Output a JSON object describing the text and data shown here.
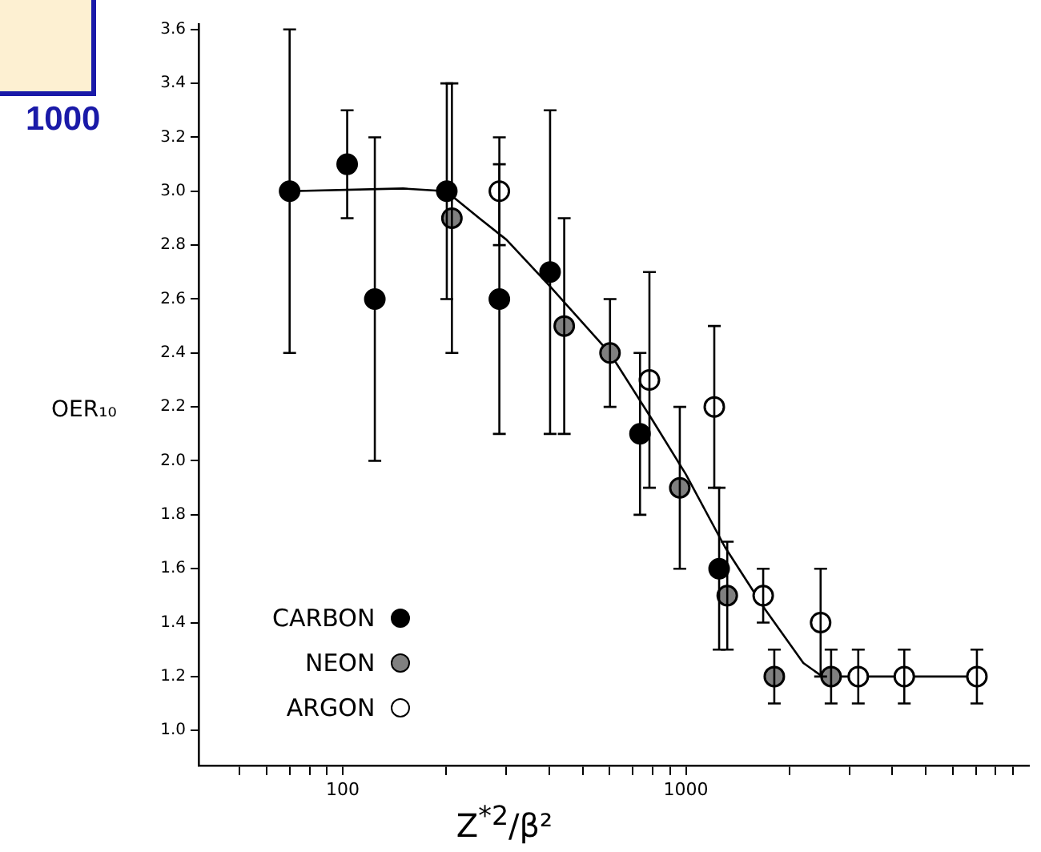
{
  "chart_data": {
    "type": "scatter",
    "xlabel": "Z$^{*2}$/β²",
    "ylabel": "OER₁₀",
    "log": "x",
    "grid": false,
    "legend": "bottom left",
    "marker": "circle",
    "xlim": [
      38,
      10000
    ],
    "ylim": [
      0.87,
      3.62
    ],
    "xticks": [
      {
        "value": 50,
        "label": null
      },
      {
        "value": 60,
        "label": null
      },
      {
        "value": 70,
        "label": null
      },
      {
        "value": 80,
        "label": null
      },
      {
        "value": 90,
        "label": null
      },
      100,
      {
        "value": 200,
        "label": null
      },
      {
        "value": 300,
        "label": null
      },
      {
        "value": 400,
        "label": null
      },
      {
        "value": 500,
        "label": null
      },
      {
        "value": 600,
        "label": null
      },
      {
        "value": 700,
        "label": null
      },
      {
        "value": 800,
        "label": null
      },
      {
        "value": 900,
        "label": null
      },
      1000,
      {
        "value": 2000,
        "label": null
      },
      {
        "value": 3000,
        "label": null
      },
      {
        "value": 4000,
        "label": null
      },
      {
        "value": 5000,
        "label": null
      },
      {
        "value": 6000,
        "label": null
      },
      {
        "value": 7000,
        "label": null
      },
      {
        "value": 8000,
        "label": null
      },
      {
        "value": 9000,
        "label": null
      }
    ],
    "yticks": [
      {
        "value": 1.0,
        "label": "1.0"
      },
      {
        "value": 1.2,
        "label": "1.2"
      },
      {
        "value": 1.4,
        "label": "1.4"
      },
      {
        "value": 1.6,
        "label": "1.6"
      },
      {
        "value": 1.8,
        "label": "1.8"
      },
      {
        "value": 2.0,
        "label": "2.0"
      },
      {
        "value": 2.2,
        "label": "2.2"
      },
      {
        "value": 2.4,
        "label": "2.4"
      },
      {
        "value": 2.6,
        "label": "2.6"
      },
      {
        "value": 2.8,
        "label": "2.8"
      },
      {
        "value": 3.0,
        "label": "3.0"
      },
      {
        "value": 3.2,
        "label": "3.2"
      },
      {
        "value": 3.4,
        "label": "3.4"
      },
      {
        "value": 3.6,
        "label": "3.6"
      }
    ],
    "annotations": [
      "1000"
    ],
    "series": [
      {
        "name": "CARBON",
        "color": "#000000",
        "x": [
          70,
          103,
          124,
          201,
          286,
          402,
          735,
          1250
        ],
        "values": [
          3.0,
          3.1,
          2.6,
          3.0,
          2.6,
          2.7,
          2.1,
          1.6
        ],
        "errors": [
          [
            2.4,
            3.6
          ],
          [
            2.9,
            3.3
          ],
          [
            2.0,
            3.2
          ],
          [
            2.6,
            3.4
          ],
          [
            2.1,
            3.1
          ],
          [
            2.1,
            3.3
          ],
          [
            1.8,
            2.4
          ],
          [
            1.3,
            1.9
          ]
        ]
      },
      {
        "name": "NEON",
        "color": "#808080",
        "x": [
          208,
          442,
          601,
          960,
          1320,
          1810,
          2650
        ],
        "values": [
          2.9,
          2.5,
          2.4,
          1.9,
          1.5,
          1.2,
          1.2
        ],
        "errors": [
          [
            2.4,
            3.4
          ],
          [
            2.1,
            2.9
          ],
          [
            2.2,
            2.6
          ],
          [
            1.6,
            2.2
          ],
          [
            1.3,
            1.7
          ],
          [
            1.1,
            1.3
          ],
          [
            1.1,
            1.3
          ]
        ]
      },
      {
        "name": "ARGON",
        "color": "#ffffff",
        "x": [
          286,
          783,
          1210,
          1680,
          2470,
          3180,
          4330,
          7050
        ],
        "values": [
          3.0,
          2.3,
          2.2,
          1.5,
          1.4,
          1.2,
          1.2,
          1.2
        ],
        "errors": [
          [
            2.8,
            3.2
          ],
          [
            1.9,
            2.7
          ],
          [
            1.9,
            2.5
          ],
          [
            1.4,
            1.6
          ],
          [
            1.2,
            1.6
          ],
          [
            1.1,
            1.3
          ],
          [
            1.1,
            1.3
          ],
          [
            1.1,
            1.3
          ]
        ]
      },
      {
        "type": "line",
        "color": "#000000",
        "marker": "none",
        "line_style": "solid",
        "x": [
          70,
          150,
          200,
          250,
          300,
          400,
          600,
          800,
          1000,
          1300,
          1700,
          2200,
          2500,
          3200,
          4300,
          7050
        ],
        "values": [
          3.0,
          3.01,
          3.0,
          2.9,
          2.82,
          2.65,
          2.4,
          2.15,
          1.95,
          1.68,
          1.45,
          1.25,
          1.2,
          1.2,
          1.2,
          1.2
        ]
      }
    ]
  }
}
